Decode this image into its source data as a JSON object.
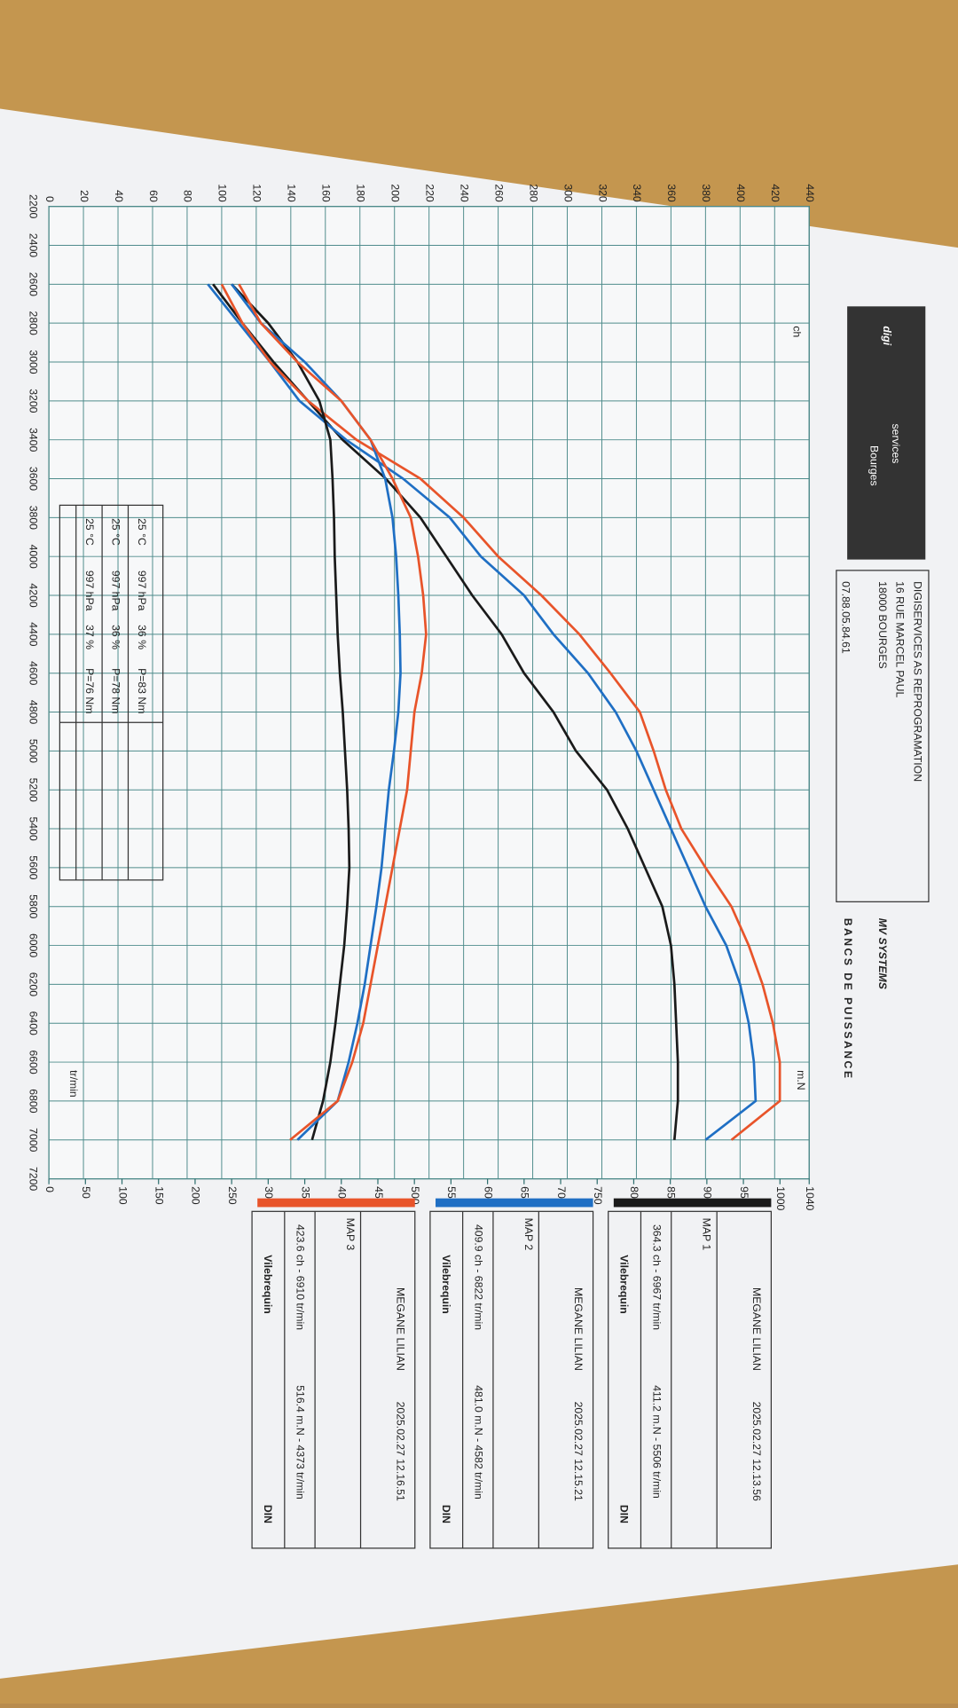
{
  "header": {
    "logo": "digi",
    "logo_sub": "services",
    "logo_city": "Bourges",
    "company": "DIGISERVICES AS REPROGRAMATION",
    "street": "16 RUE MARCEL PAUL",
    "city": "18000 BOURGES",
    "phone": "07.88.05.84.61",
    "brand": "MV SYSTEMS",
    "brand_sub": "BANCS DE PUISSANCE"
  },
  "chart_data": {
    "type": "line",
    "x": [
      2600,
      2800,
      3000,
      3200,
      3400,
      3600,
      3800,
      4000,
      4200,
      4400,
      4600,
      4800,
      5000,
      5200,
      5400,
      5600,
      5800,
      6000,
      6200,
      6400,
      6600,
      6800,
      7000
    ],
    "xlim": [
      2200,
      7200
    ],
    "xticks": [
      2200,
      2400,
      2600,
      2800,
      3000,
      3200,
      3400,
      3600,
      3800,
      4000,
      4200,
      4400,
      4600,
      4800,
      5000,
      5200,
      5400,
      5600,
      5800,
      6000,
      6200,
      6400,
      6600,
      6800,
      7000,
      7200
    ],
    "ylim": [
      0,
      440
    ],
    "yticks": [
      0,
      20,
      40,
      60,
      80,
      100,
      120,
      140,
      160,
      180,
      200,
      220,
      240,
      260,
      280,
      300,
      320,
      340,
      360,
      380,
      400,
      420,
      440
    ],
    "y2lim": [
      0,
      1040
    ],
    "y2ticks": [
      0,
      50,
      100,
      150,
      200,
      250,
      300,
      350,
      400,
      450,
      500,
      550,
      600,
      650,
      700,
      750,
      800,
      850,
      900,
      950,
      1000,
      1040
    ],
    "ylabel": "ch",
    "y2label": "m.N",
    "xlabel": "tr/min",
    "grid": true,
    "series": [
      {
        "name": "MAP 1",
        "color": "#1a1a1a",
        "values": [
          95,
          112,
          130,
          150,
          170,
          195,
          215,
          230,
          245,
          262,
          275,
          292,
          305,
          323,
          335,
          345,
          355,
          360,
          362,
          363,
          364,
          364,
          362
        ]
      },
      {
        "name": "MAP 2",
        "color": "#1f6fc4",
        "values": [
          92,
          110,
          128,
          145,
          172,
          205,
          232,
          250,
          275,
          292,
          312,
          328,
          340,
          350,
          360,
          370,
          380,
          392,
          400,
          405,
          408,
          409,
          380
        ]
      },
      {
        "name": "MAP 3",
        "color": "#e8542a",
        "values": [
          100,
          112,
          128,
          150,
          178,
          215,
          240,
          260,
          285,
          307,
          325,
          342,
          350,
          357,
          366,
          380,
          395,
          405,
          413,
          419,
          423,
          423,
          395
        ]
      },
      {
        "name": "MAP 1",
        "color": "#1a1a1a",
        "axis": "y2",
        "values": [
          250,
          300,
          340,
          370,
          385,
          388,
          390,
          391,
          393,
          395,
          398,
          402,
          405,
          408,
          410,
          411,
          408,
          404,
          398,
          392,
          385,
          375,
          360
        ]
      },
      {
        "name": "MAP 2",
        "color": "#1f6fc4",
        "axis": "y2",
        "values": [
          250,
          290,
          350,
          400,
          440,
          460,
          470,
          475,
          478,
          480,
          481,
          478,
          472,
          465,
          460,
          455,
          448,
          440,
          432,
          422,
          410,
          395,
          340
        ]
      },
      {
        "name": "MAP 3",
        "color": "#e8542a",
        "axis": "y2",
        "values": [
          260,
          290,
          340,
          400,
          440,
          470,
          495,
          505,
          512,
          516,
          510,
          500,
          495,
          490,
          480,
          470,
          460,
          450,
          440,
          430,
          415,
          395,
          330
        ]
      }
    ]
  },
  "legend_boxes": [
    {
      "vehicle": "MEGANE LILIAN",
      "timestamp": "2025.02.27 12.13.56",
      "power_peak": "364.3 ch - 6967 tr/min",
      "torque_peak": "411.2 m.N - 5506 tr/min",
      "crank": "Vilebrequin",
      "norm": "DIN"
    },
    {
      "vehicle": "MEGANE LILIAN",
      "timestamp": "2025.02.27 12.15.21",
      "power_peak": "409.9 ch - 6822 tr/min",
      "torque_peak": "481.0 m.N - 4582 tr/min",
      "crank": "Vilebrequin",
      "norm": "DIN"
    },
    {
      "vehicle": "MEGANE LILIAN",
      "timestamp": "2025.02.27 12.16.51",
      "power_peak": "423.6 ch - 6910 tr/min",
      "torque_peak": "516.4 m.N - 4373 tr/min",
      "crank": "Vilebrequin",
      "norm": "DIN"
    }
  ],
  "conditions": [
    [
      "25 °C",
      "997 hPa",
      "36 %",
      "P=83 Nm"
    ],
    [
      "25 °C",
      "997 hPa",
      "36 %",
      "P=78 Nm"
    ],
    [
      "25 °C",
      "997 hPa",
      "37 %",
      "P=76 Nm"
    ]
  ]
}
